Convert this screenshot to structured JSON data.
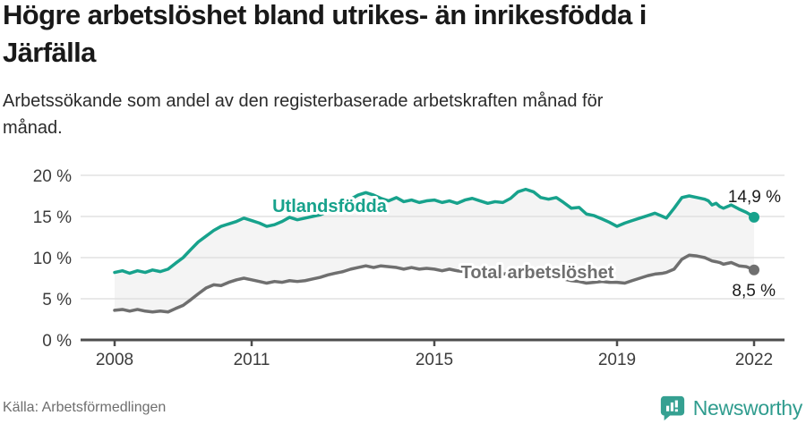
{
  "header": {
    "title": "Högre arbetslöshet bland utrikes- än inrikesfödda i Järfälla",
    "subtitle": "Arbetssökande som andel av den registerbaserade arbetskraften månad för månad."
  },
  "footer": {
    "source": "Källa: Arbetsförmedlingen",
    "brand": "Newsworthy",
    "brand_color": "#2f9c8e"
  },
  "chart_data": {
    "type": "line",
    "title": "Högre arbetslöshet bland utrikes- än inrikesfödda i Järfälla",
    "subtitle": "Arbetssökande som andel av den registerbaserade arbetskraften månad för månad.",
    "xlabel": "",
    "ylabel": "%",
    "xlim": [
      2008,
      2022
    ],
    "ylim": [
      0,
      20
    ],
    "grid": true,
    "legend_position": "inline-labels",
    "band_fill_between_series": true,
    "band_fill_color": "#f4f4f4",
    "gridline_color": "#dcdcdc",
    "axis_color": "#4d4d4d",
    "xticks": [
      {
        "v": 2008,
        "label": "2008"
      },
      {
        "v": 2011,
        "label": "2011"
      },
      {
        "v": 2015,
        "label": "2015"
      },
      {
        "v": 2019,
        "label": "2019"
      },
      {
        "v": 2022,
        "label": "2022"
      }
    ],
    "yticks": [
      {
        "v": 0,
        "label": "0 %"
      },
      {
        "v": 5,
        "label": "5 %"
      },
      {
        "v": 10,
        "label": "10 %"
      },
      {
        "v": 15,
        "label": "15 %"
      },
      {
        "v": 20,
        "label": "20 %"
      }
    ],
    "x": [
      2008,
      2008.17,
      2008.33,
      2008.5,
      2008.67,
      2008.83,
      2009,
      2009.17,
      2009.33,
      2009.5,
      2009.67,
      2009.83,
      2010,
      2010.17,
      2010.33,
      2010.5,
      2010.67,
      2010.83,
      2011,
      2011.17,
      2011.33,
      2011.5,
      2011.67,
      2011.83,
      2012,
      2012.17,
      2012.33,
      2012.5,
      2012.67,
      2012.83,
      2013,
      2013.17,
      2013.33,
      2013.5,
      2013.67,
      2013.83,
      2014,
      2014.17,
      2014.33,
      2014.5,
      2014.67,
      2014.83,
      2015,
      2015.17,
      2015.33,
      2015.5,
      2015.67,
      2015.83,
      2016,
      2016.17,
      2016.33,
      2016.5,
      2016.67,
      2016.83,
      2017,
      2017.17,
      2017.33,
      2017.5,
      2017.67,
      2017.83,
      2018,
      2018.17,
      2018.33,
      2018.5,
      2018.67,
      2018.83,
      2019,
      2019.17,
      2019.33,
      2019.5,
      2019.67,
      2019.83,
      2020,
      2020.08,
      2020.25,
      2020.42,
      2020.58,
      2020.75,
      2020.92,
      2021,
      2021.08,
      2021.17,
      2021.25,
      2021.33,
      2021.5,
      2021.67,
      2021.83,
      2021.92,
      2022
    ],
    "series": [
      {
        "name": "Utlandsfödda",
        "color": "#17a28c",
        "end_value": 14.9,
        "end_label": "14,9 %",
        "values": [
          8.2,
          8.4,
          8.1,
          8.4,
          8.2,
          8.5,
          8.3,
          8.6,
          9.3,
          10,
          11,
          11.9,
          12.6,
          13.3,
          13.8,
          14.1,
          14.4,
          14.8,
          14.5,
          14.2,
          13.8,
          14,
          14.4,
          14.9,
          14.6,
          14.8,
          15,
          15.2,
          15.6,
          16,
          16.5,
          17.1,
          17.6,
          17.9,
          17.6,
          17.2,
          16.9,
          17.3,
          16.8,
          17,
          16.7,
          16.9,
          17,
          16.7,
          16.9,
          16.6,
          17,
          17.2,
          16.9,
          16.6,
          16.8,
          16.7,
          17.2,
          18,
          18.3,
          18,
          17.3,
          17.1,
          17.3,
          16.7,
          16,
          16.1,
          15.3,
          15.1,
          14.7,
          14.3,
          13.8,
          14.2,
          14.5,
          14.8,
          15.1,
          15.4,
          15,
          14.8,
          16,
          17.3,
          17.5,
          17.3,
          17.1,
          16.9,
          16.4,
          16.6,
          16.2,
          16,
          16.4,
          15.9,
          15.5,
          15.2,
          14.9
        ]
      },
      {
        "name": "Total arbetslöshet",
        "color": "#6f6f6f",
        "end_value": 8.5,
        "end_label": "8,5 %",
        "values": [
          3.6,
          3.7,
          3.5,
          3.7,
          3.5,
          3.4,
          3.5,
          3.4,
          3.8,
          4.2,
          4.9,
          5.6,
          6.3,
          6.7,
          6.6,
          7,
          7.3,
          7.5,
          7.3,
          7.1,
          6.9,
          7.1,
          7,
          7.2,
          7.1,
          7.2,
          7.4,
          7.6,
          7.9,
          8.1,
          8.3,
          8.6,
          8.8,
          9,
          8.8,
          9,
          8.9,
          8.8,
          8.6,
          8.8,
          8.6,
          8.7,
          8.6,
          8.4,
          8.6,
          8.4,
          8.3,
          8.4,
          8.3,
          8.2,
          8.1,
          8,
          8.1,
          8,
          7.9,
          7.7,
          7.6,
          7.5,
          7.6,
          7.4,
          7.2,
          7.1,
          6.9,
          7,
          7.1,
          7,
          7,
          6.9,
          7.2,
          7.5,
          7.8,
          8,
          8.1,
          8.2,
          8.6,
          9.8,
          10.3,
          10.2,
          10,
          9.8,
          9.6,
          9.5,
          9.4,
          9.2,
          9.4,
          9,
          8.9,
          8.7,
          8.5
        ]
      }
    ]
  }
}
